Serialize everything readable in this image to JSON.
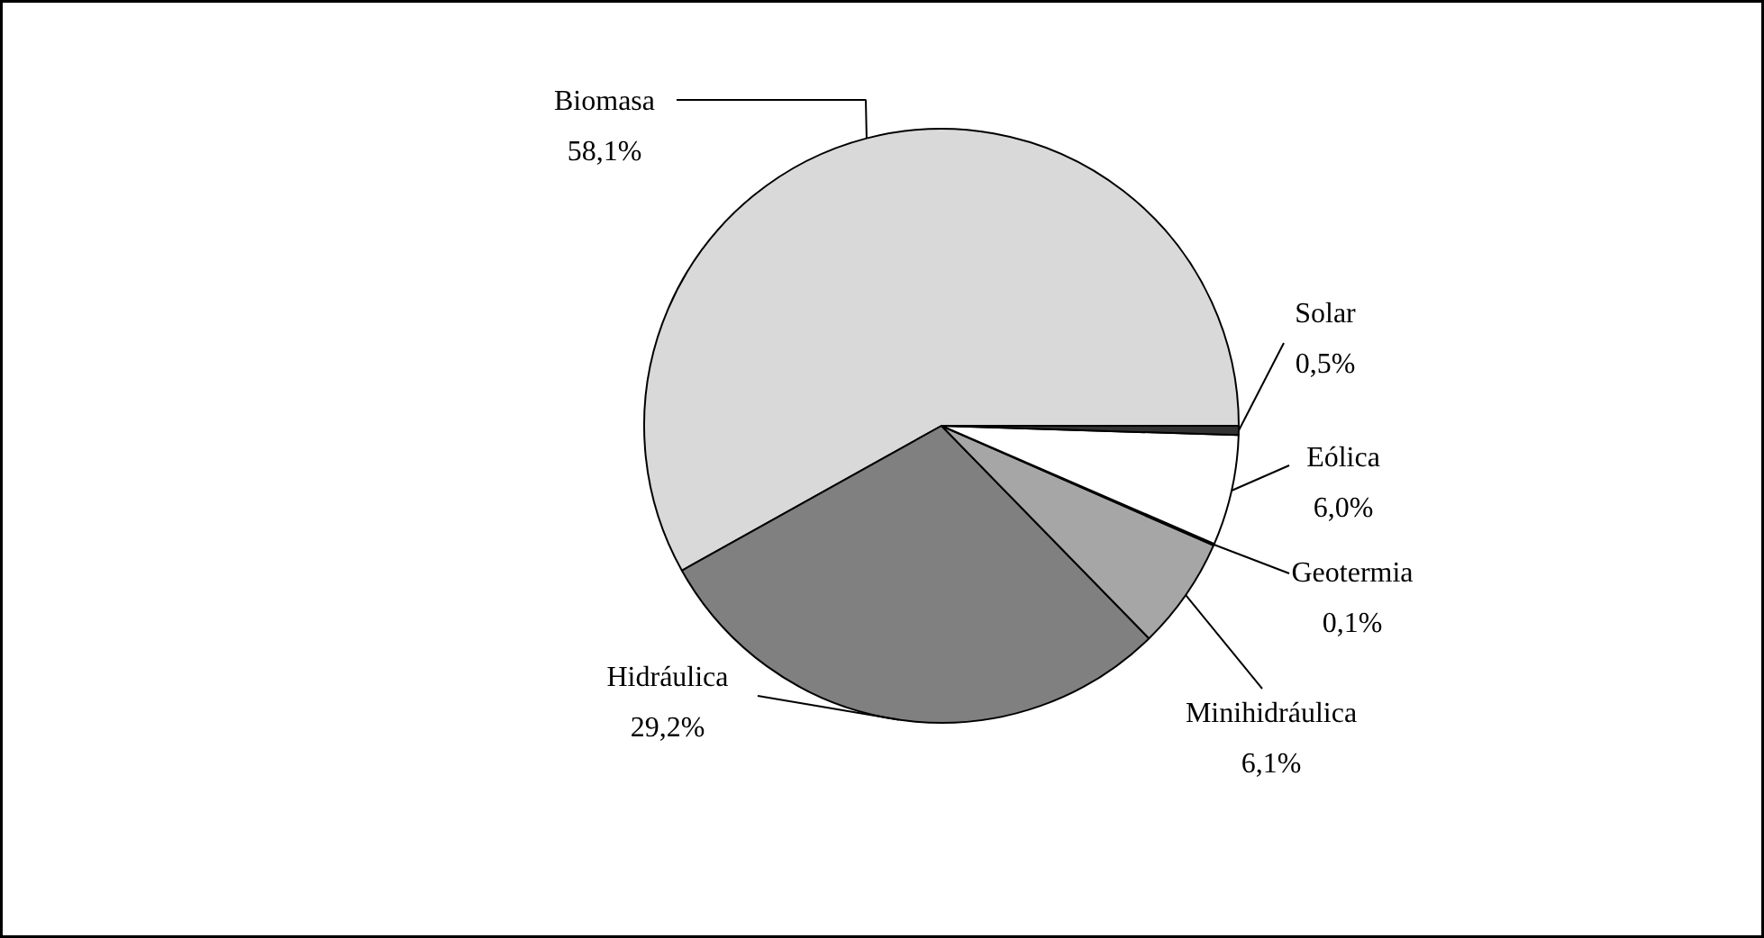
{
  "chart_data": {
    "type": "pie",
    "categories": [
      "Biomasa",
      "Hidráulica",
      "Minihidráulica",
      "Geotermia",
      "Eólica",
      "Solar"
    ],
    "values": [
      58.1,
      29.2,
      6.1,
      0.1,
      6.0,
      0.5
    ],
    "value_labels": [
      "58,1%",
      "29,2%",
      "6,1%",
      "0,1%",
      "6,0%",
      "0,5%"
    ],
    "colors": [
      "#d9d9d9",
      "#808080",
      "#a6a6a6",
      "#333333",
      "#ffffff",
      "#333333"
    ]
  }
}
